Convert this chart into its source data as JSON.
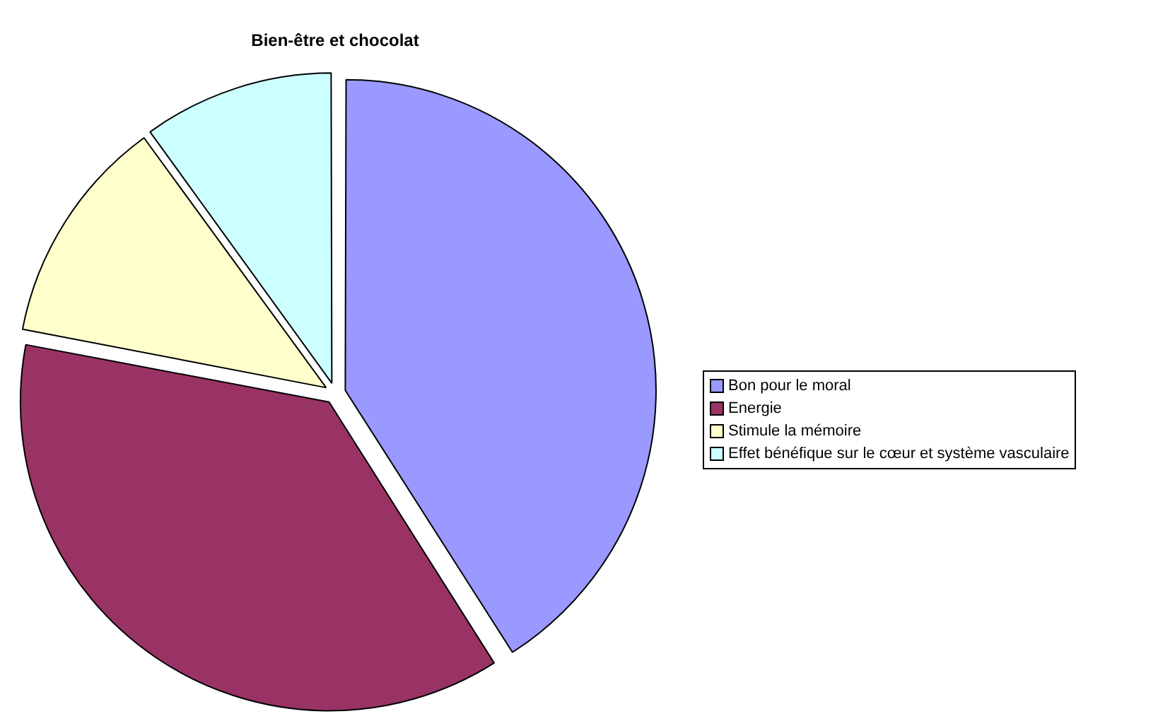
{
  "chart_data": {
    "type": "pie",
    "title": "Bien-être et chocolat",
    "categories": [
      "Bon pour le moral",
      "Energie",
      "Stimule la mémoire",
      "Effet bénéfique sur le cœur et système vasculaire"
    ],
    "values": [
      41,
      37,
      12,
      10
    ],
    "colors": [
      "#9999ff",
      "#993366",
      "#ffffcc",
      "#ccffff"
    ],
    "legend": "right"
  }
}
